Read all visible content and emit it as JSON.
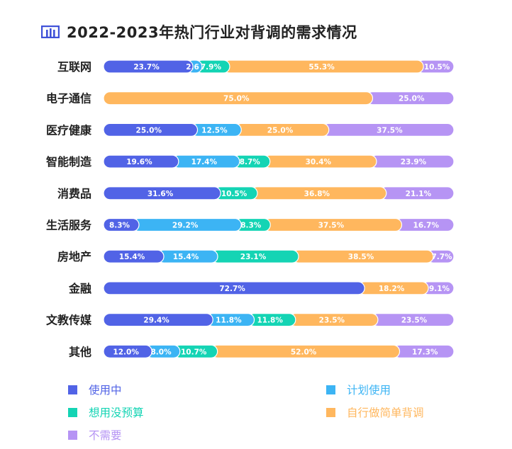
{
  "title": "2022-2023年热门行业对背调的需求情况",
  "title_icon": "bar-chart-icon",
  "colors": {
    "使用中": "#5163e6",
    "计划使用": "#3cb4f4",
    "想用没预算": "#14d4b4",
    "自行做简单背调": "#ffb75e",
    "不需要": "#b694f4"
  },
  "chart_data": {
    "type": "bar",
    "orientation": "horizontal",
    "stacked": "100%",
    "title": "2022-2023年热门行业对背调的需求情况",
    "categories": [
      "互联网",
      "电子通信",
      "医疗健康",
      "智能制造",
      "消费品",
      "生活服务",
      "房地产",
      "金融",
      "文教传媒",
      "其他"
    ],
    "series": [
      {
        "name": "使用中",
        "values": [
          23.7,
          0,
          25.0,
          19.6,
          31.6,
          8.3,
          15.4,
          72.7,
          29.4,
          12.0
        ]
      },
      {
        "name": "计划使用",
        "values": [
          2.6,
          0,
          12.5,
          17.4,
          0,
          29.2,
          15.4,
          0,
          11.8,
          8.0
        ]
      },
      {
        "name": "想用没预算",
        "values": [
          7.9,
          0,
          0,
          8.7,
          10.5,
          8.3,
          23.1,
          0,
          11.8,
          10.7
        ]
      },
      {
        "name": "自行做简单背调",
        "values": [
          55.3,
          75.0,
          25.0,
          30.4,
          36.8,
          37.5,
          38.5,
          18.2,
          23.5,
          52.0
        ]
      },
      {
        "name": "不需要",
        "values": [
          10.5,
          25.0,
          37.5,
          23.9,
          21.1,
          16.7,
          7.7,
          9.1,
          23.5,
          17.3
        ]
      }
    ],
    "display_labels": [
      [
        "23.7%",
        "2.6",
        "7.9%",
        "55.3%",
        "10.5%"
      ],
      [
        "",
        "",
        "",
        "75.0%",
        "25.0%"
      ],
      [
        "25.0%",
        "12.5%",
        "",
        "25.0%",
        "37.5%"
      ],
      [
        "19.6%",
        "17.4%",
        "8.7%",
        "30.4%",
        "23.9%"
      ],
      [
        "31.6%",
        "",
        "10.5%",
        "36.8%",
        "21.1%"
      ],
      [
        "8.3%",
        "29.2%",
        "8.3%",
        "37.5%",
        "16.7%"
      ],
      [
        "15.4%",
        "15.4%",
        "23.1%",
        "38.5%",
        "7.7%"
      ],
      [
        "72.7%",
        "",
        "",
        "18.2%",
        "9.1%"
      ],
      [
        "29.4%",
        "11.8%",
        "11.8%",
        "23.5%",
        "23.5%"
      ],
      [
        "12.0%",
        "8.0%",
        "10.7%",
        "52.0%",
        "17.3%"
      ]
    ],
    "xlim": [
      0,
      100
    ],
    "legend": {
      "placement": "bottom",
      "items": [
        "使用中",
        "计划使用",
        "想用没预算",
        "自行做简单背调",
        "不需要"
      ]
    }
  }
}
